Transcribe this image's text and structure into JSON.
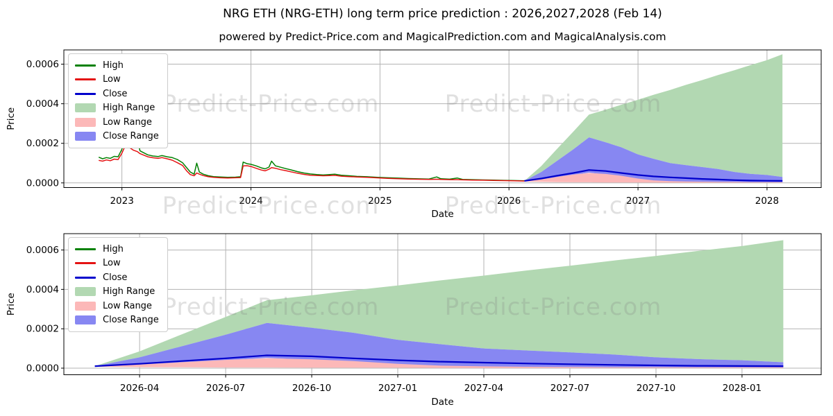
{
  "header": {
    "title": "NRG ETH (NRG-ETH) long term price prediction : 2026,2027,2028 (Feb 14)",
    "subtitle": "powered by Predict-Price.com and MagicalPrediction.com and MagicalAnalysis.com"
  },
  "watermark": {
    "text": "Predict-Price.com"
  },
  "colors": {
    "high": "#028002",
    "low": "#e41212",
    "close": "#0000cc",
    "high_range": "#b2d8b2",
    "low_range": "#fcb8b8",
    "close_range": "#8787f2",
    "grid": "#b3b3b3",
    "spine": "#000000"
  },
  "legend": {
    "items": [
      {
        "label": "High",
        "type": "line",
        "color": "#028002"
      },
      {
        "label": "Low",
        "type": "line",
        "color": "#e41212"
      },
      {
        "label": "Close",
        "type": "line",
        "color": "#0000cc"
      },
      {
        "label": "High Range",
        "type": "patch",
        "color": "#b2d8b2"
      },
      {
        "label": "Low Range",
        "type": "patch",
        "color": "#fcb8b8"
      },
      {
        "label": "Close Range",
        "type": "patch",
        "color": "#8787f2"
      }
    ]
  },
  "chart_data": {
    "type": "line",
    "title": "NRG ETH (NRG-ETH) long term price prediction : 2026,2027,2028 (Feb 14)",
    "legend_position": "upper left",
    "grid": true,
    "panels": [
      {
        "name": "full-history-and-forecast",
        "xlabel": "Date",
        "ylabel": "Price",
        "xlim": [
          2022.55,
          2028.42
        ],
        "ylim": [
          -2.35e-05,
          0.000672
        ],
        "show_history": true,
        "xticks": [
          {
            "v": 2023,
            "label": "2023"
          },
          {
            "v": 2024,
            "label": "2024"
          },
          {
            "v": 2025,
            "label": "2025"
          },
          {
            "v": 2026,
            "label": "2026"
          },
          {
            "v": 2027,
            "label": "2027"
          },
          {
            "v": 2028,
            "label": "2028"
          }
        ],
        "yticks": [
          {
            "v": 0.0,
            "label": "0.0000"
          },
          {
            "v": 0.0002,
            "label": "0.0002"
          },
          {
            "v": 0.0004,
            "label": "0.0004"
          },
          {
            "v": 0.0006,
            "label": "0.0006"
          }
        ]
      },
      {
        "name": "forecast-zoom",
        "xlabel": "Date",
        "ylabel": "Price",
        "xlim": [
          2026.03,
          2028.23
        ],
        "ylim": [
          -3.35e-05,
          0.000683
        ],
        "show_history": false,
        "xticks": [
          {
            "v": 2026.25,
            "label": "2026-04"
          },
          {
            "v": 2026.5,
            "label": "2026-07"
          },
          {
            "v": 2026.75,
            "label": "2026-10"
          },
          {
            "v": 2027.0,
            "label": "2027-01"
          },
          {
            "v": 2027.25,
            "label": "2027-04"
          },
          {
            "v": 2027.5,
            "label": "2027-07"
          },
          {
            "v": 2027.75,
            "label": "2027-10"
          },
          {
            "v": 2028.0,
            "label": "2028-01"
          }
        ],
        "yticks": [
          {
            "v": 0.0,
            "label": "0.0000"
          },
          {
            "v": 0.0002,
            "label": "0.0002"
          },
          {
            "v": 0.0004,
            "label": "0.0004"
          },
          {
            "v": 0.0006,
            "label": "0.0006"
          }
        ]
      }
    ],
    "series": {
      "history": {
        "columns": [
          "t",
          "high",
          "low"
        ],
        "points": [
          [
            2022.82,
            0.00013,
            0.000114
          ],
          [
            2022.85,
            0.000122,
            0.00011
          ],
          [
            2022.88,
            0.000128,
            0.000116
          ],
          [
            2022.91,
            0.000124,
            0.000112
          ],
          [
            2022.94,
            0.000134,
            0.00012
          ],
          [
            2022.97,
            0.000132,
            0.000118
          ],
          [
            2023.0,
            0.00017,
            0.00015
          ],
          [
            2023.02,
            0.000225,
            0.00018
          ],
          [
            2023.04,
            0.000205,
            0.000192
          ],
          [
            2023.06,
            0.000198,
            0.000178
          ],
          [
            2023.09,
            0.000185,
            0.000165
          ],
          [
            2023.12,
            0.00022,
            0.000158
          ],
          [
            2023.14,
            0.000162,
            0.000148
          ],
          [
            2023.17,
            0.000152,
            0.00014
          ],
          [
            2023.2,
            0.000142,
            0.000132
          ],
          [
            2023.24,
            0.000136,
            0.000127
          ],
          [
            2023.28,
            0.000133,
            0.000124
          ],
          [
            2023.31,
            0.000138,
            0.000128
          ],
          [
            2023.35,
            0.000132,
            0.000122
          ],
          [
            2023.39,
            0.000128,
            0.000115
          ],
          [
            2023.43,
            0.000118,
            0.000102
          ],
          [
            2023.47,
            0.000102,
            8.8e-05
          ],
          [
            2023.5,
            7.8e-05,
            6.2e-05
          ],
          [
            2023.53,
            5.5e-05,
            4.2e-05
          ],
          [
            2023.56,
            4.4e-05,
            3.6e-05
          ],
          [
            2023.58,
            0.0001,
            5e-05
          ],
          [
            2023.6,
            5.5e-05,
            4.4e-05
          ],
          [
            2023.63,
            4.4e-05,
            3.7e-05
          ],
          [
            2023.67,
            3.6e-05,
            3.1e-05
          ],
          [
            2023.71,
            3.2e-05,
            2.8e-05
          ],
          [
            2023.76,
            3e-05,
            2.6e-05
          ],
          [
            2023.82,
            2.8e-05,
            2.5e-05
          ],
          [
            2023.88,
            2.9e-05,
            2.6e-05
          ],
          [
            2023.92,
            3.1e-05,
            2.7e-05
          ],
          [
            2023.94,
            0.000105,
            8.6e-05
          ],
          [
            2023.97,
            9.7e-05,
            8.7e-05
          ],
          [
            2024.0,
            9.4e-05,
            8.3e-05
          ],
          [
            2024.04,
            8.6e-05,
            7.4e-05
          ],
          [
            2024.08,
            7.6e-05,
            6.5e-05
          ],
          [
            2024.11,
            7.1e-05,
            6.1e-05
          ],
          [
            2024.14,
            8e-05,
            6.9e-05
          ],
          [
            2024.16,
            0.00011,
            7.7e-05
          ],
          [
            2024.19,
            8.6e-05,
            7.4e-05
          ],
          [
            2024.23,
            7.9e-05,
            6.7e-05
          ],
          [
            2024.27,
            7.2e-05,
            6.2e-05
          ],
          [
            2024.31,
            6.6e-05,
            5.6e-05
          ],
          [
            2024.36,
            5.7e-05,
            4.9e-05
          ],
          [
            2024.41,
            5e-05,
            4.3e-05
          ],
          [
            2024.46,
            4.5e-05,
            3.9e-05
          ],
          [
            2024.51,
            4.2e-05,
            3.75e-05
          ],
          [
            2024.56,
            4e-05,
            3.6e-05
          ],
          [
            2024.61,
            4.2e-05,
            3.7e-05
          ],
          [
            2024.65,
            4.4e-05,
            3.8e-05
          ],
          [
            2024.7,
            3.9e-05,
            3.4e-05
          ],
          [
            2024.76,
            3.6e-05,
            3.2e-05
          ],
          [
            2024.82,
            3.3e-05,
            3e-05
          ],
          [
            2024.9,
            3.1e-05,
            2.8e-05
          ],
          [
            2024.98,
            2.8e-05,
            2.55e-05
          ],
          [
            2025.06,
            2.6e-05,
            2.3e-05
          ],
          [
            2025.14,
            2.4e-05,
            2.1e-05
          ],
          [
            2025.22,
            2.2e-05,
            1.95e-05
          ],
          [
            2025.3,
            2.05e-05,
            1.85e-05
          ],
          [
            2025.38,
            1.95e-05,
            1.75e-05
          ],
          [
            2025.44,
            3e-05,
            1.85e-05
          ],
          [
            2025.47,
            2.15e-05,
            1.8e-05
          ],
          [
            2025.54,
            1.9e-05,
            1.65e-05
          ],
          [
            2025.6,
            2.45e-05,
            1.65e-05
          ],
          [
            2025.64,
            1.8e-05,
            1.55e-05
          ],
          [
            2025.72,
            1.65e-05,
            1.45e-05
          ],
          [
            2025.8,
            1.5e-05,
            1.35e-05
          ],
          [
            2025.88,
            1.4e-05,
            1.25e-05
          ],
          [
            2025.96,
            1.3e-05,
            1.15e-05
          ],
          [
            2026.04,
            1.2e-05,
            1.05e-05
          ],
          [
            2026.12,
            1.05e-05,
            9.5e-06
          ]
        ]
      },
      "prediction": {
        "t": [
          2026.12,
          2026.25,
          2026.37,
          2026.5,
          2026.62,
          2026.75,
          2026.87,
          2027.0,
          2027.12,
          2027.25,
          2027.37,
          2027.5,
          2027.62,
          2027.75,
          2027.87,
          2028.0,
          2028.12
        ],
        "high_range_top": [
          1e-05,
          8.5e-05,
          0.00017,
          0.00026,
          0.000345,
          0.00037,
          0.000395,
          0.00042,
          0.000445,
          0.00047,
          0.000495,
          0.00052,
          0.000545,
          0.00057,
          0.000595,
          0.00062,
          0.00065
        ],
        "close_range_top": [
          1e-05,
          5.5e-05,
          0.00011,
          0.00017,
          0.00023,
          0.000205,
          0.00018,
          0.000144,
          0.000122,
          0.0001,
          9e-05,
          8e-05,
          7e-05,
          5.5e-05,
          4.6e-05,
          4e-05,
          3e-05
        ],
        "close": [
          1e-05,
          2.2e-05,
          3.6e-05,
          5e-05,
          6.5e-05,
          6e-05,
          5e-05,
          4e-05,
          3.3e-05,
          2.8e-05,
          2.4e-05,
          2e-05,
          1.7e-05,
          1.4e-05,
          1.2e-05,
          1.1e-05,
          1e-05
        ],
        "close_range_bottom": [
          8e-06,
          1.5e-05,
          2.6e-05,
          4e-05,
          5.2e-05,
          4.2e-05,
          2.5e-05,
          1e-05,
          5e-06,
          3e-06,
          2e-06,
          2e-06,
          2e-06,
          2e-06,
          2e-06,
          2e-06,
          2e-06
        ],
        "low_range_top": [
          9e-06,
          1.8e-05,
          3e-05,
          4.2e-05,
          5e-05,
          4.5e-05,
          3.6e-05,
          2.2e-05,
          1.3e-05,
          9e-06,
          7e-06,
          6e-06,
          5e-06,
          5e-06,
          4e-06,
          4e-06,
          4e-06
        ],
        "low_range_bottom": [
          7e-06,
          5e-06,
          4e-06,
          3e-06,
          3e-06,
          2e-06,
          2e-06,
          2e-06,
          1.5e-06,
          1e-06,
          1e-06,
          1e-06,
          1e-06,
          1e-06,
          1e-06,
          1e-06,
          1e-06
        ]
      }
    }
  }
}
